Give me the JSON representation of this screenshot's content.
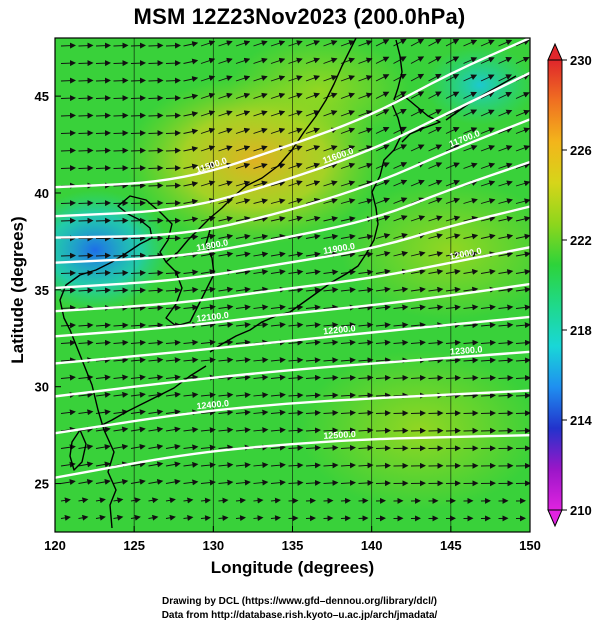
{
  "title": "MSM 12Z23Nov2023 (200.0hPa)",
  "xlabel": "Longitude (degrees)",
  "ylabel": "Latitude  (degrees)",
  "credit_line1": "Drawing by DCL (https://www.gfd–dennou.org/library/dcl/)",
  "credit_line2": "Data from http://database.rish.kyoto–u.ac.jp/arch/jmadata/",
  "colors": {
    "field_main": "#39d13a",
    "field_warm": "#e0c21e",
    "field_cool": "#2c7fe0",
    "arrows": "#111111",
    "contours": "#ffffff",
    "coast": "#000000"
  },
  "chart_data": {
    "type": "heatmap",
    "xlim": [
      120,
      150
    ],
    "ylim": [
      22.5,
      48
    ],
    "x_ticks": [
      "120",
      "125",
      "130",
      "135",
      "140",
      "145",
      "150"
    ],
    "y_ticks": [
      "25",
      "30",
      "35",
      "40",
      "45"
    ],
    "colorbar": {
      "min": 210,
      "max": 230,
      "ticks": [
        "210",
        "214",
        "218",
        "222",
        "226",
        "230"
      ],
      "colormap": [
        "#e023e0",
        "#9a16c8",
        "#2233cc",
        "#1f8ff0",
        "#19d7d7",
        "#1fd98a",
        "#2dd33a",
        "#8ed61c",
        "#d6d51a",
        "#f3b51b",
        "#f07021",
        "#e0262b"
      ]
    },
    "contours": [
      {
        "label": "11500.0",
        "points": [
          [
            120,
            40.3
          ],
          [
            128,
            40.6
          ],
          [
            135,
            42.5
          ],
          [
            140,
            44.0
          ],
          [
            145,
            46.2
          ],
          [
            150,
            48.0
          ]
        ]
      },
      {
        "label": "11600.0",
        "points": [
          [
            120,
            38.8
          ],
          [
            128,
            39.1
          ],
          [
            134,
            40.5
          ],
          [
            140,
            42.2
          ],
          [
            145,
            44.2
          ],
          [
            150,
            46.2
          ]
        ]
      },
      {
        "label": "11700.0",
        "points": [
          [
            120,
            37.7
          ],
          [
            128,
            37.8
          ],
          [
            134,
            38.9
          ],
          [
            140,
            40.4
          ],
          [
            145,
            42.2
          ],
          [
            150,
            43.8
          ]
        ]
      },
      {
        "label": "11800.0",
        "points": [
          [
            120,
            36.4
          ],
          [
            128,
            36.7
          ],
          [
            134,
            37.6
          ],
          [
            140,
            38.6
          ],
          [
            145,
            40.2
          ],
          [
            150,
            41.6
          ]
        ]
      },
      {
        "label": "11900.0",
        "points": [
          [
            120,
            35.1
          ],
          [
            128,
            35.5
          ],
          [
            134,
            36.3
          ],
          [
            140,
            37.1
          ],
          [
            145,
            38.3
          ],
          [
            150,
            39.3
          ]
        ]
      },
      {
        "label": "12000.0",
        "points": [
          [
            120,
            33.9
          ],
          [
            128,
            34.3
          ],
          [
            134,
            35.0
          ],
          [
            140,
            35.6
          ],
          [
            145,
            36.4
          ],
          [
            150,
            37.2
          ]
        ]
      },
      {
        "label": "12100.0",
        "points": [
          [
            120,
            32.6
          ],
          [
            128,
            33.1
          ],
          [
            134,
            33.7
          ],
          [
            140,
            34.2
          ],
          [
            145,
            34.7
          ],
          [
            150,
            35.3
          ]
        ]
      },
      {
        "label": "12200.0",
        "points": [
          [
            120,
            31.2
          ],
          [
            128,
            31.8
          ],
          [
            134,
            32.3
          ],
          [
            140,
            32.8
          ],
          [
            145,
            33.2
          ],
          [
            150,
            33.6
          ]
        ]
      },
      {
        "label": "12300.0",
        "points": [
          [
            120,
            29.5
          ],
          [
            128,
            30.3
          ],
          [
            134,
            30.8
          ],
          [
            140,
            31.2
          ],
          [
            145,
            31.5
          ],
          [
            150,
            31.8
          ]
        ]
      },
      {
        "label": "12400.0",
        "points": [
          [
            120,
            27.6
          ],
          [
            128,
            28.6
          ],
          [
            134,
            29.1
          ],
          [
            140,
            29.4
          ],
          [
            145,
            29.6
          ],
          [
            150,
            29.8
          ]
        ]
      },
      {
        "label": "12500.0",
        "points": [
          [
            120,
            25.3
          ],
          [
            128,
            26.5
          ],
          [
            134,
            27.0
          ],
          [
            140,
            27.3
          ],
          [
            145,
            27.4
          ],
          [
            150,
            27.5
          ]
        ]
      }
    ]
  }
}
